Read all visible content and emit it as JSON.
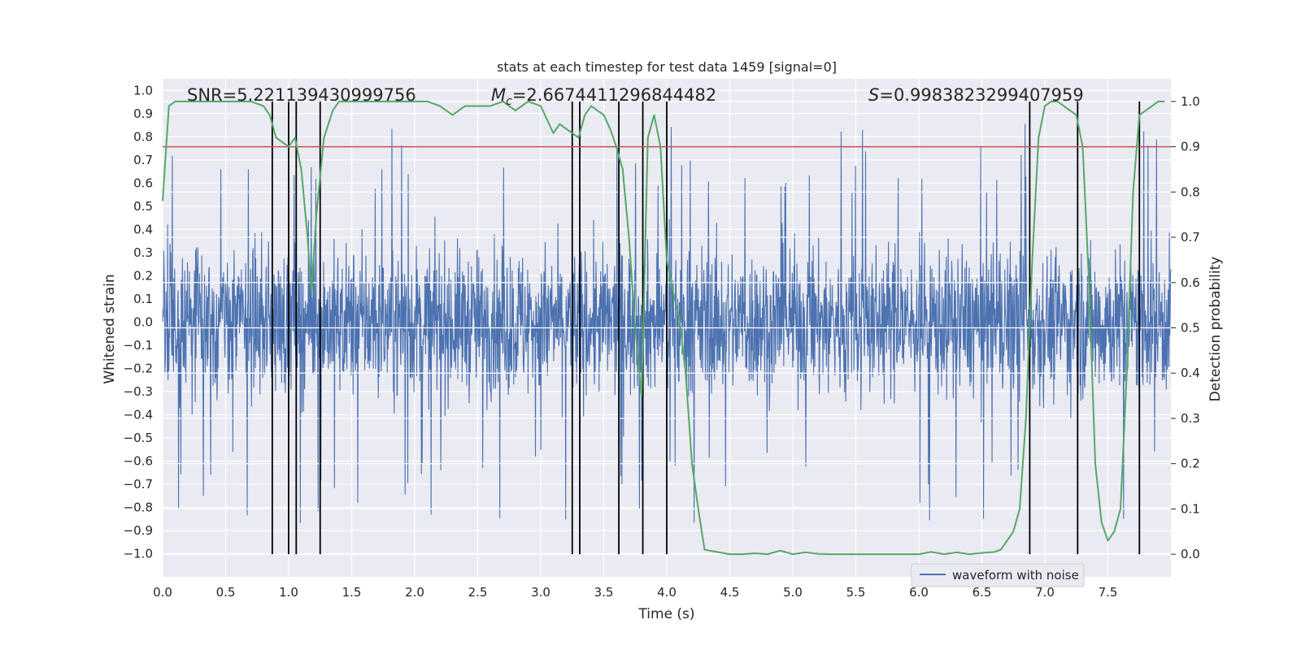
{
  "chart_data": {
    "type": "line",
    "title": "stats at each timestep for test data 1459 [signal=0]",
    "xlabel": "Time (s)",
    "ylabel_left": "Whitened strain",
    "ylabel_right": "Detection probability",
    "xlim": [
      0.0,
      8.0
    ],
    "ylim_left": [
      -1.1,
      1.05
    ],
    "ylim_right": [
      -0.05,
      1.05
    ],
    "x_ticks": [
      "0.0",
      "0.5",
      "1.0",
      "1.5",
      "2.0",
      "2.5",
      "3.0",
      "3.5",
      "4.0",
      "4.5",
      "5.0",
      "5.5",
      "6.0",
      "6.5",
      "7.0",
      "7.5"
    ],
    "y_left_ticks": [
      "1.0",
      "0.9",
      "0.8",
      "0.7",
      "0.6",
      "0.5",
      "0.4",
      "0.3",
      "0.2",
      "0.1",
      "0.0",
      "−0.1",
      "−0.2",
      "−0.3",
      "−0.4",
      "−0.5",
      "−0.6",
      "−0.7",
      "−0.8",
      "−0.9",
      "−1.0"
    ],
    "y_right_ticks": [
      "1.0",
      "0.9",
      "0.8",
      "0.7",
      "0.6",
      "0.5",
      "0.4",
      "0.3",
      "0.2",
      "0.1",
      "0.0"
    ],
    "annotations": {
      "snr": "SNR=5.221139430999756",
      "mc_symbol": "M",
      "mc_sub": "c",
      "mc_value": "=2.6674411296844482",
      "s_symbol": "S",
      "s_value": "=0.9983823299407959"
    },
    "threshold": 0.9,
    "detection_events": [
      0.87,
      1.0,
      1.06,
      1.25,
      3.25,
      3.31,
      3.62,
      3.81,
      4.0,
      6.88,
      7.26,
      7.75
    ],
    "series": [
      {
        "name": "waveform with noise",
        "color": "#4c72b0",
        "description": "noise waveform, typical range ±0.4 with spikes to ±0.9"
      },
      {
        "name": "detection probability",
        "color": "#55a868",
        "x": [
          0.0,
          0.05,
          0.1,
          0.2,
          0.3,
          0.5,
          0.7,
          0.8,
          0.85,
          0.9,
          0.95,
          1.0,
          1.05,
          1.1,
          1.15,
          1.18,
          1.22,
          1.28,
          1.35,
          1.4,
          1.5,
          1.7,
          1.9,
          2.1,
          2.2,
          2.3,
          2.4,
          2.5,
          2.6,
          2.7,
          2.8,
          2.9,
          3.0,
          3.05,
          3.1,
          3.15,
          3.2,
          3.25,
          3.3,
          3.35,
          3.4,
          3.45,
          3.5,
          3.55,
          3.6,
          3.65,
          3.7,
          3.75,
          3.8,
          3.85,
          3.9,
          3.95,
          4.0,
          4.05,
          4.1,
          4.15,
          4.2,
          4.25,
          4.3,
          4.4,
          4.5,
          4.6,
          4.7,
          4.8,
          4.9,
          5.0,
          5.1,
          5.2,
          5.3,
          5.4,
          5.5,
          5.6,
          5.8,
          6.0,
          6.1,
          6.2,
          6.3,
          6.4,
          6.5,
          6.6,
          6.65,
          6.7,
          6.75,
          6.8,
          6.85,
          6.9,
          6.95,
          7.0,
          7.05,
          7.1,
          7.15,
          7.2,
          7.25,
          7.3,
          7.35,
          7.4,
          7.45,
          7.5,
          7.55,
          7.6,
          7.65,
          7.7,
          7.75,
          7.8,
          7.85,
          7.9,
          7.95
        ],
        "y": [
          0.78,
          0.99,
          1.0,
          1.0,
          1.0,
          1.0,
          1.0,
          0.99,
          0.97,
          0.92,
          0.91,
          0.9,
          0.92,
          0.85,
          0.7,
          0.58,
          0.75,
          0.92,
          0.98,
          1.0,
          1.0,
          1.0,
          1.0,
          1.0,
          0.99,
          0.97,
          0.99,
          0.99,
          0.99,
          1.0,
          0.98,
          1.0,
          0.99,
          0.96,
          0.93,
          0.95,
          0.94,
          0.93,
          0.92,
          0.97,
          0.99,
          0.98,
          0.97,
          0.94,
          0.9,
          0.85,
          0.7,
          0.5,
          0.35,
          0.92,
          0.97,
          0.9,
          0.65,
          0.58,
          0.52,
          0.4,
          0.2,
          0.1,
          0.01,
          0.005,
          0.0,
          0.0,
          0.002,
          0.0,
          0.008,
          0.0,
          0.004,
          0.001,
          0.0,
          0.0,
          0.0,
          0.0,
          0.0,
          0.0,
          0.005,
          0.0,
          0.004,
          0.0,
          0.003,
          0.005,
          0.01,
          0.03,
          0.05,
          0.1,
          0.3,
          0.65,
          0.92,
          0.99,
          1.0,
          1.0,
          0.99,
          0.98,
          0.97,
          0.9,
          0.6,
          0.2,
          0.07,
          0.03,
          0.05,
          0.1,
          0.4,
          0.8,
          0.97,
          0.98,
          0.99,
          1.0,
          1.0
        ]
      }
    ],
    "legend": {
      "label": "waveform with noise",
      "position": "lower-right"
    },
    "grid": true,
    "colors": {
      "background": "#eaeaf2",
      "grid": "#ffffff",
      "threshold": "#c44e52",
      "event_line": "#000000"
    }
  }
}
